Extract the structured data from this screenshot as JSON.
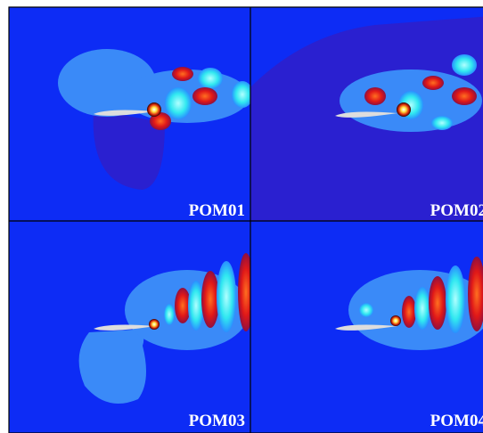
{
  "panels": [
    {
      "label": "POM01"
    },
    {
      "label": "POM02"
    },
    {
      "label": "POM03"
    },
    {
      "label": "POM04"
    }
  ]
}
